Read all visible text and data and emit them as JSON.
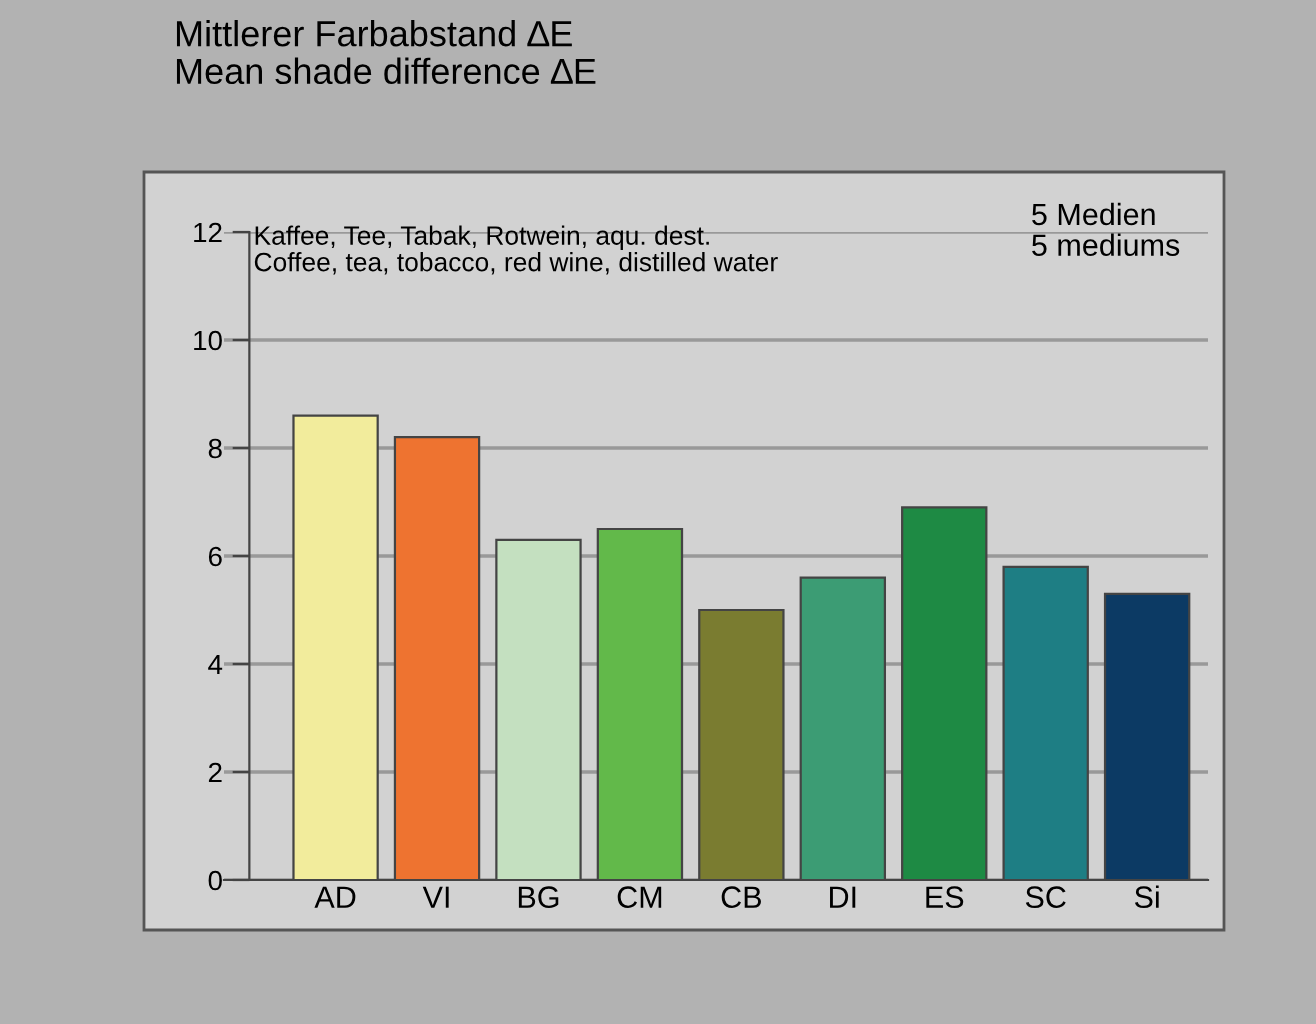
{
  "chart_data": {
    "type": "bar",
    "title": "Mittlerer Farbabstand ∆E\nMean shade difference ∆E",
    "categories": [
      "AD",
      "VI",
      "BG",
      "CM",
      "CB",
      "DI",
      "ES",
      "SC",
      "Si"
    ],
    "values": [
      8.6,
      8.2,
      6.3,
      6.5,
      5.0,
      5.6,
      6.9,
      5.8,
      5.3
    ],
    "colors": [
      "#f2ec9c",
      "#ee7330",
      "#c4e0c0",
      "#62b94a",
      "#7a7c30",
      "#3c9c74",
      "#1e8a44",
      "#1e7e84",
      "#0c3a64"
    ],
    "ylim": [
      0,
      12
    ],
    "yticks": [
      0,
      2,
      4,
      6,
      8,
      10,
      12
    ],
    "grid": "y",
    "annotations": [
      "Kaffee, Tee, Tabak, Rotwein, aqu. dest.\nCoffee, tea, tobacco, red wine, distilled water",
      "5 Medien\n5 mediums"
    ]
  }
}
